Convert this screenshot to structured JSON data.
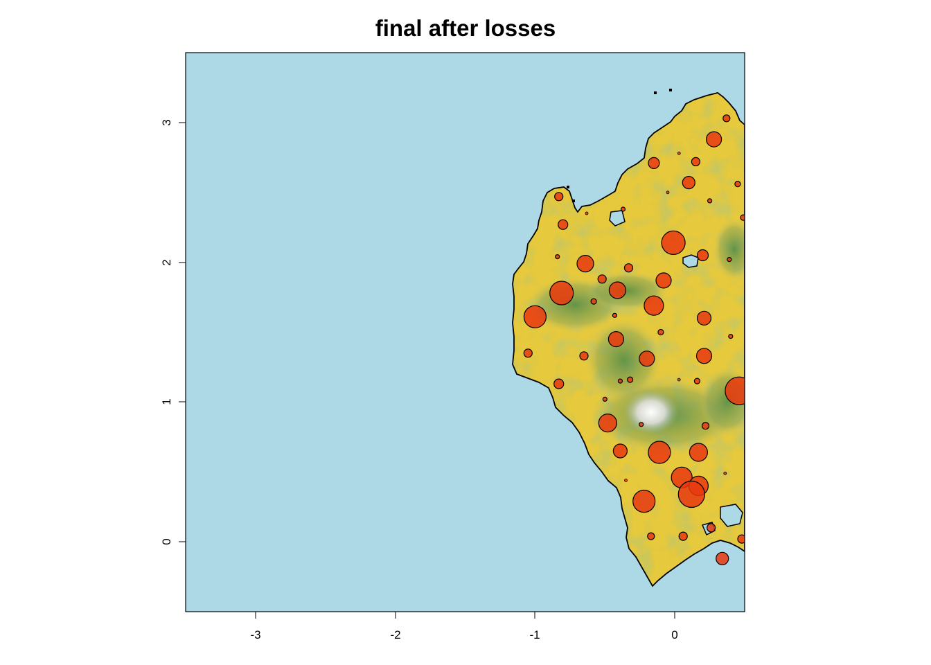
{
  "title": "final after losses",
  "x_axis": {
    "ticks": [
      -3,
      -2,
      -1,
      0
    ],
    "labels": [
      "-3",
      "-2",
      "-1",
      "0"
    ],
    "range": [
      -3.5,
      0.5
    ]
  },
  "y_axis": {
    "ticks": [
      0,
      1,
      2,
      3
    ],
    "labels": [
      "0",
      "1",
      "2",
      "3"
    ],
    "range": [
      -0.5,
      3.5
    ]
  },
  "colors": {
    "sea": "#add8e6",
    "land_low": "#e8c83a",
    "land_mid": "#c8c870",
    "land_high": "#5e8e4a",
    "peak": "#f2f2f2",
    "population": "#e8380e",
    "outline": "#000000"
  },
  "chart_data": {
    "type": "map",
    "layers": [
      "sea",
      "island terrain",
      "population circles"
    ],
    "population_points": [
      {
        "x": -0.83,
        "y": 2.47,
        "s": 6
      },
      {
        "x": -0.8,
        "y": 2.27,
        "s": 7
      },
      {
        "x": -0.84,
        "y": 2.04,
        "s": 3
      },
      {
        "x": -0.64,
        "y": 1.99,
        "s": 12
      },
      {
        "x": -0.81,
        "y": 1.78,
        "s": 17
      },
      {
        "x": -1.0,
        "y": 1.61,
        "s": 16
      },
      {
        "x": -0.58,
        "y": 1.72,
        "s": 4
      },
      {
        "x": -0.52,
        "y": 1.88,
        "s": 6
      },
      {
        "x": -0.33,
        "y": 1.96,
        "s": 6
      },
      {
        "x": -0.41,
        "y": 1.8,
        "s": 12
      },
      {
        "x": -0.15,
        "y": 1.69,
        "s": 14
      },
      {
        "x": -0.08,
        "y": 1.87,
        "s": 11
      },
      {
        "x": -0.42,
        "y": 1.45,
        "s": 11
      },
      {
        "x": -0.65,
        "y": 1.33,
        "s": 6
      },
      {
        "x": -1.05,
        "y": 1.35,
        "s": 6
      },
      {
        "x": -0.83,
        "y": 1.13,
        "s": 7
      },
      {
        "x": -0.2,
        "y": 1.31,
        "s": 11
      },
      {
        "x": 0.21,
        "y": 1.6,
        "s": 10
      },
      {
        "x": 0.21,
        "y": 1.33,
        "s": 11
      },
      {
        "x": -0.32,
        "y": 1.16,
        "s": 4
      },
      {
        "x": -0.39,
        "y": 1.15,
        "s": 3
      },
      {
        "x": 0.16,
        "y": 1.15,
        "s": 4
      },
      {
        "x": 0.46,
        "y": 1.08,
        "s": 20
      },
      {
        "x": -0.5,
        "y": 1.02,
        "s": 3
      },
      {
        "x": -0.48,
        "y": 0.85,
        "s": 13
      },
      {
        "x": -0.24,
        "y": 0.84,
        "s": 3
      },
      {
        "x": 0.22,
        "y": 0.83,
        "s": 5
      },
      {
        "x": -0.39,
        "y": 0.65,
        "s": 10
      },
      {
        "x": -0.11,
        "y": 0.64,
        "s": 16
      },
      {
        "x": 0.17,
        "y": 0.64,
        "s": 13
      },
      {
        "x": 0.05,
        "y": 0.46,
        "s": 15
      },
      {
        "x": 0.17,
        "y": 0.4,
        "s": 14
      },
      {
        "x": 0.12,
        "y": 0.34,
        "s": 19
      },
      {
        "x": -0.22,
        "y": 0.29,
        "s": 16
      },
      {
        "x": 0.26,
        "y": 0.1,
        "s": 6
      },
      {
        "x": -0.17,
        "y": 0.04,
        "s": 5
      },
      {
        "x": 0.06,
        "y": 0.04,
        "s": 6
      },
      {
        "x": 0.48,
        "y": 0.02,
        "s": 6
      },
      {
        "x": 0.34,
        "y": -0.12,
        "s": 9
      },
      {
        "x": -0.01,
        "y": 2.14,
        "s": 17
      },
      {
        "x": 0.2,
        "y": 2.05,
        "s": 8
      },
      {
        "x": -0.15,
        "y": 2.71,
        "s": 8
      },
      {
        "x": 0.1,
        "y": 2.57,
        "s": 9
      },
      {
        "x": 0.28,
        "y": 2.88,
        "s": 11
      },
      {
        "x": 0.37,
        "y": 3.03,
        "s": 5
      },
      {
        "x": 0.15,
        "y": 2.72,
        "s": 6
      },
      {
        "x": 0.45,
        "y": 2.56,
        "s": 4
      },
      {
        "x": 0.25,
        "y": 2.44,
        "s": 3
      },
      {
        "x": 0.49,
        "y": 2.32,
        "s": 4
      },
      {
        "x": 0.39,
        "y": 2.02,
        "s": 3
      },
      {
        "x": -0.37,
        "y": 2.38,
        "s": 3
      },
      {
        "x": -0.63,
        "y": 2.35,
        "s": 2
      },
      {
        "x": -0.43,
        "y": 1.62,
        "s": 3
      },
      {
        "x": -0.1,
        "y": 1.5,
        "s": 4
      },
      {
        "x": 0.4,
        "y": 1.47,
        "s": 3
      },
      {
        "x": 0.03,
        "y": 2.78,
        "s": 2
      },
      {
        "x": -0.05,
        "y": 2.5,
        "s": 2
      },
      {
        "x": 0.03,
        "y": 1.16,
        "s": 2
      },
      {
        "x": -0.35,
        "y": 0.44,
        "s": 2
      },
      {
        "x": 0.36,
        "y": 0.49,
        "s": 2
      }
    ]
  }
}
